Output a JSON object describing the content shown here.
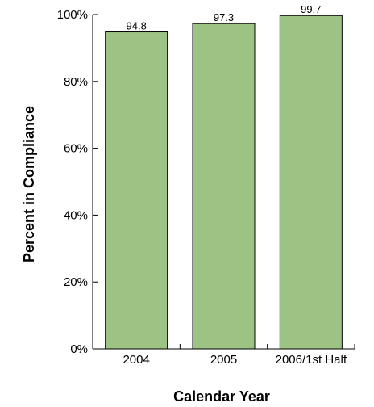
{
  "chart_data": {
    "type": "bar",
    "categories": [
      "2004",
      "2005",
      "2006/1st Half"
    ],
    "values": [
      94.8,
      97.3,
      99.7
    ],
    "value_labels": [
      "94.8",
      "97.3",
      "99.7"
    ],
    "title": "",
    "xlabel": "Calendar Year",
    "ylabel": "Percent in Compliance",
    "ylim": [
      0,
      100
    ],
    "yticks": [
      0,
      20,
      40,
      60,
      80,
      100
    ],
    "ytick_labels": [
      "0%",
      "20%",
      "40%",
      "60%",
      "80%",
      "100%"
    ],
    "grid": false,
    "legend": "none",
    "bar_color": "#9dc384",
    "bar_edge_color": "#000000"
  }
}
